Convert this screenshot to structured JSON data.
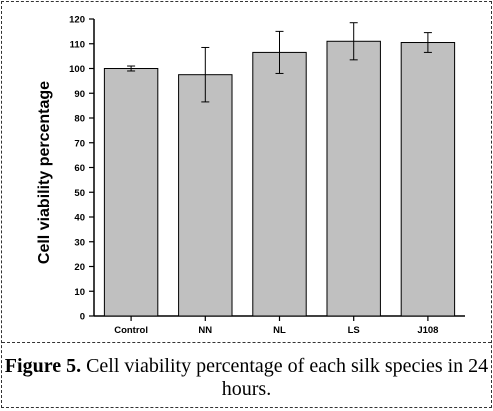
{
  "chart_data": {
    "type": "bar",
    "ylabel": "Cell viability percentage",
    "xlabel": "",
    "ylim": [
      0,
      120
    ],
    "yticks": [
      0,
      10,
      20,
      30,
      40,
      50,
      60,
      70,
      80,
      90,
      100,
      110,
      120
    ],
    "categories": [
      "Control",
      "NN",
      "NL",
      "LS",
      "J108"
    ],
    "values": [
      100,
      97.5,
      106.5,
      111,
      110.5
    ],
    "errors": [
      1,
      11,
      8.5,
      7.5,
      4
    ],
    "bar_color": "#c0c0c0",
    "grid": false
  },
  "caption": {
    "label": "Figure 5.",
    "text": "Cell viability percentage of each silk species in 24 hours."
  }
}
